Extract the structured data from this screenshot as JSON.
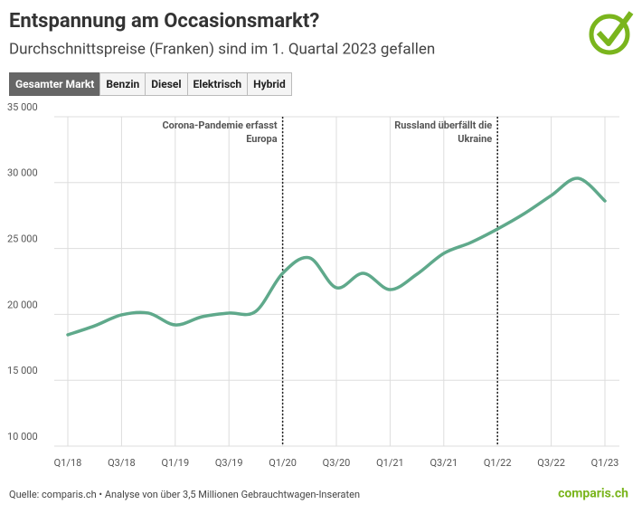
{
  "chart_data": {
    "type": "line",
    "title": "Entspannung am Occasionsmarkt?",
    "subtitle": "Durchschnittspreise (Franken) sind im 1. Quartal 2023 gefallen",
    "tabs": [
      "Gesamter Markt",
      "Benzin",
      "Diesel",
      "Elektrisch",
      "Hybrid"
    ],
    "categories": [
      "Q1/18",
      null,
      "Q3/18",
      null,
      "Q1/19",
      null,
      "Q3/19",
      null,
      "Q1/20",
      null,
      "Q3/20",
      null,
      "Q1/21",
      null,
      "Q3/21",
      null,
      "Q1/22",
      null,
      "Q3/22",
      null,
      "Q1/23"
    ],
    "values": [
      18450,
      19130,
      19960,
      20100,
      19200,
      19820,
      20100,
      20230,
      23120,
      24290,
      22020,
      23120,
      21880,
      23050,
      24630,
      25450,
      26480,
      27650,
      29020,
      30330,
      28610
    ],
    "color": "#5fa98b",
    "ylim": [
      10000,
      35000
    ],
    "yticks": [
      {
        "value": 10000,
        "label": "10 000"
      },
      {
        "value": 15000,
        "label": "15 000"
      },
      {
        "value": 20000,
        "label": "20 000"
      },
      {
        "value": 25000,
        "label": "25 000"
      },
      {
        "value": 30000,
        "label": "30 000"
      },
      {
        "value": 35000,
        "label": "35 000"
      }
    ],
    "grid": true,
    "annotations": [
      {
        "x": "Q1/20",
        "lines": [
          "Corona-Pandemie erfasst",
          "Europa"
        ]
      },
      {
        "x": "Q1/22",
        "lines": [
          "Russland überfällt die",
          "Ukraine"
        ]
      }
    ],
    "source": "Quelle: comparis.ch • Analyse von über 3,5 Millionen Gebrauchtwagen-Inseraten",
    "logo": "comparis.ch"
  }
}
